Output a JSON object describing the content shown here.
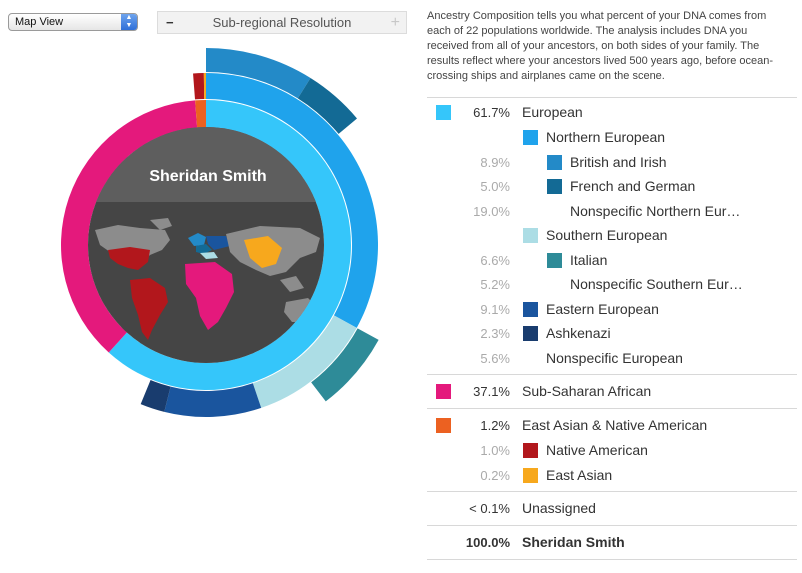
{
  "toolbar": {
    "view_select": "Map View",
    "resolution_label": "Sub-regional Resolution"
  },
  "chart": {
    "center_name": "Sheridan Smith"
  },
  "description": "Ancestry Composition tells you what percent of your DNA comes from each of 22 populations worldwide. The analysis includes DNA you received from all of your ancestors, on both sides of your family. The results reflect where your ancestors lived 500 years ago, before ocean-crossing ships and airplanes came on the scene.",
  "chart_data": {
    "type": "pie",
    "title": "",
    "center_label": "Sheridan Smith",
    "rings": [
      {
        "level": 1,
        "segments": [
          {
            "name": "European",
            "value": 61.7,
            "color": "#35c6fa"
          },
          {
            "name": "Sub-Saharan African",
            "value": 37.1,
            "color": "#e4197c"
          },
          {
            "name": "East Asian & Native American",
            "value": 1.2,
            "color": "#ec6121"
          }
        ]
      },
      {
        "level": 2,
        "segments": [
          {
            "name": "Northern European",
            "value": 33.0,
            "color": "#1fa3ec"
          },
          {
            "name": "Southern European",
            "value": 11.8,
            "color": "#acdde5"
          },
          {
            "name": "Eastern European",
            "value": 9.1,
            "color": "#1a559e"
          },
          {
            "name": "Ashkenazi",
            "value": 2.3,
            "color": "#193c6e"
          },
          {
            "name": "Native American",
            "value": 1.0,
            "color": "#b2171c"
          },
          {
            "name": "East Asian",
            "value": 0.2,
            "color": "#f7a81d"
          }
        ]
      },
      {
        "level": 3,
        "segments": [
          {
            "name": "British and Irish",
            "value": 8.9,
            "color": "#238ac8"
          },
          {
            "name": "French and German",
            "value": 5.0,
            "color": "#136a95"
          },
          {
            "name": "Italian",
            "value": 6.6,
            "color": "#2e8b98"
          }
        ]
      }
    ]
  },
  "breakdown": {
    "rows": [
      {
        "pct": "61.7%",
        "label": "European",
        "level": 0,
        "color": "#35c6fa"
      },
      {
        "pct": "",
        "label": "Northern European",
        "level": 1,
        "color": "#1fa3ec"
      },
      {
        "pct": "8.9%",
        "label": "British and Irish",
        "level": 2,
        "color": "#238ac8"
      },
      {
        "pct": "5.0%",
        "label": "French and German",
        "level": 2,
        "color": "#136a95"
      },
      {
        "pct": "19.0%",
        "label": "Nonspecific Northern Eur…",
        "level": 2,
        "color": ""
      },
      {
        "pct": "",
        "label": "Southern European",
        "level": 1,
        "color": "#acdde5"
      },
      {
        "pct": "6.6%",
        "label": "Italian",
        "level": 2,
        "color": "#2e8b98"
      },
      {
        "pct": "5.2%",
        "label": "Nonspecific Southern Eur…",
        "level": 2,
        "color": ""
      },
      {
        "pct": "9.1%",
        "label": "Eastern European",
        "level": 1,
        "color": "#1a559e"
      },
      {
        "pct": "2.3%",
        "label": "Ashkenazi",
        "level": 1,
        "color": "#193c6e"
      },
      {
        "pct": "5.6%",
        "label": "Nonspecific European",
        "level": 1,
        "color": ""
      },
      {
        "pct": "37.1%",
        "label": "Sub-Saharan African",
        "level": 0,
        "color": "#e4197c"
      },
      {
        "pct": "1.2%",
        "label": "East Asian & Native American",
        "level": 0,
        "color": "#ec6121"
      },
      {
        "pct": "1.0%",
        "label": "Native American",
        "level": 1,
        "color": "#b2171c"
      },
      {
        "pct": "0.2%",
        "label": "East Asian",
        "level": 1,
        "color": "#f7a81d"
      },
      {
        "pct": "< 0.1%",
        "label": "Unassigned",
        "level": 0,
        "color": ""
      }
    ],
    "total": {
      "pct": "100.0%",
      "label": "Sheridan Smith"
    }
  }
}
